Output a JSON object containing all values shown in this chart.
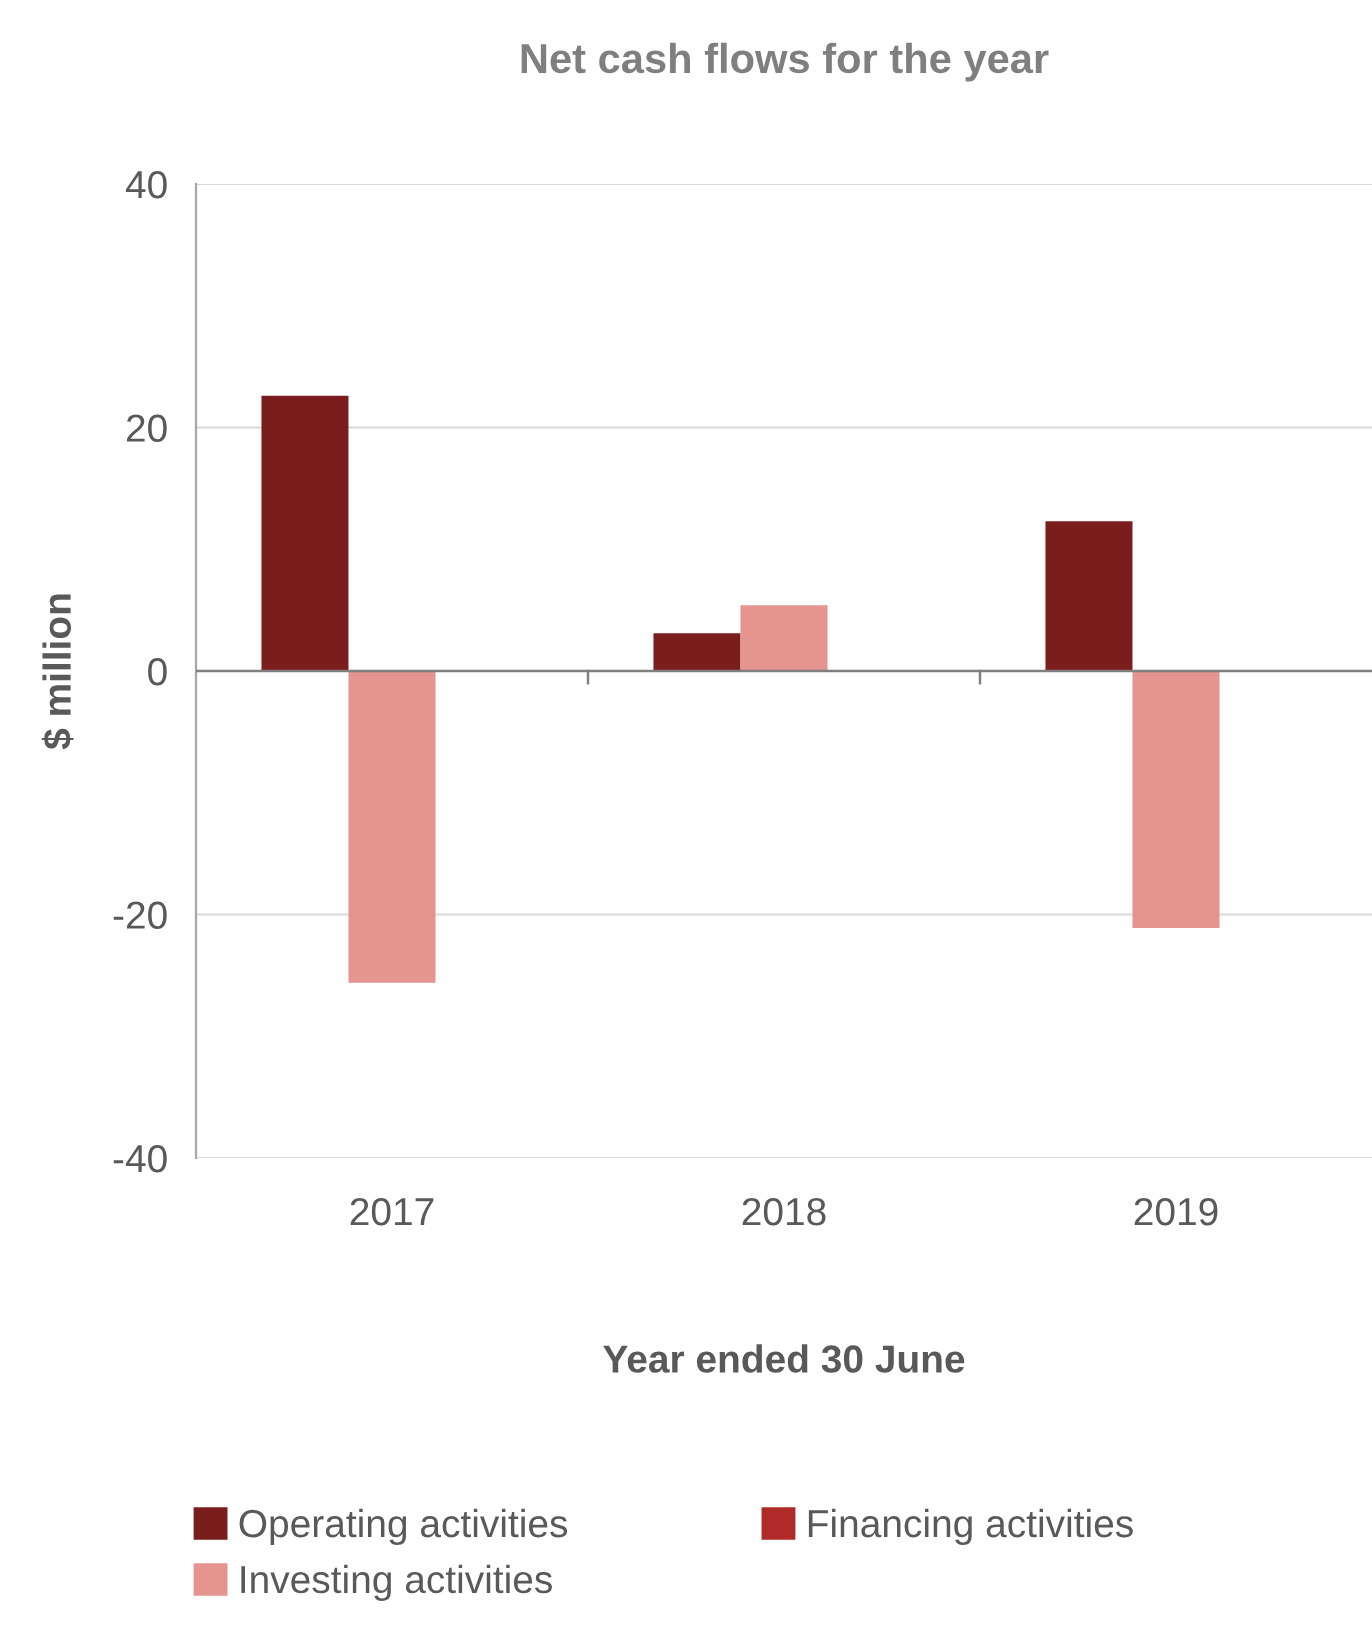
{
  "chart_data": {
    "type": "bar",
    "title": "Net cash flows for the year",
    "xlabel": "Year ended 30 June",
    "ylabel": "$ million",
    "categories": [
      "2017",
      "2018",
      "2019"
    ],
    "series": [
      {
        "name": "Operating activities",
        "color": "#7a1d1d",
        "values": [
          22.6,
          3.1,
          12.3
        ]
      },
      {
        "name": "Investing activities",
        "color": "#e5948f",
        "values": [
          -25.6,
          5.4,
          -21.1
        ]
      },
      {
        "name": "Financing activities",
        "color": "#b02a2a",
        "values": [
          null,
          null,
          null
        ]
      }
    ],
    "ylim": [
      -40,
      40
    ],
    "yticks": [
      -40,
      -20,
      0,
      20,
      40
    ],
    "grid": "y",
    "legend": "bottom"
  }
}
